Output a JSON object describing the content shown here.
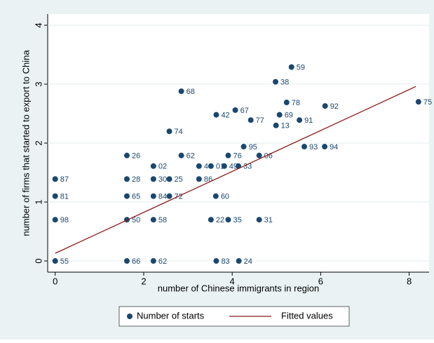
{
  "chart_data": {
    "type": "scatter",
    "xlabel": "number of Chinese immigrants in region",
    "ylabel": "number of firms that started to export to China",
    "xlim": [
      -0.17,
      8.45
    ],
    "ylim": [
      -0.19,
      4.19
    ],
    "xticks": [
      0,
      2,
      4,
      6,
      8
    ],
    "yticks": [
      0,
      1,
      2,
      3,
      4
    ],
    "grid": true,
    "legend": "bottom",
    "series": [
      {
        "name": "Number of starts",
        "type": "scatter",
        "color": "#1a476f",
        "x": [
          5.34,
          4.98,
          2.85,
          5.23,
          4.07,
          6.1,
          8.21,
          3.64,
          5.07,
          4.42,
          5.52,
          4.99,
          2.58,
          4.26,
          5.63,
          6.09,
          1.62,
          2.85,
          3.91,
          4.61,
          2.22,
          3.25,
          3.52,
          3.82,
          4.14,
          0,
          1.62,
          2.22,
          2.58,
          3.25,
          0,
          1.62,
          2.22,
          2.58,
          3.63,
          0,
          1.62,
          2.22,
          3.52,
          3.91,
          4.61,
          0,
          1.62,
          2.22,
          3.64,
          4.15
        ],
        "values": [
          3.29,
          3.04,
          2.88,
          2.69,
          2.56,
          2.63,
          2.7,
          2.48,
          2.48,
          2.39,
          2.39,
          2.3,
          2.2,
          1.94,
          1.94,
          1.94,
          1.79,
          1.79,
          1.79,
          1.79,
          1.61,
          1.61,
          1.61,
          1.61,
          1.61,
          1.39,
          1.39,
          1.39,
          1.39,
          1.39,
          1.1,
          1.1,
          1.1,
          1.1,
          1.1,
          0.7,
          0.7,
          0.7,
          0.7,
          0.7,
          0.7,
          0,
          0,
          0,
          0,
          0
        ],
        "point_labels": [
          "59",
          "38",
          "68",
          "78",
          "67",
          "92",
          "75",
          "42",
          "69",
          "77",
          "91",
          "13",
          "74",
          "95",
          "93",
          "94",
          "26",
          "62",
          "76",
          "06",
          "02",
          "40",
          "01",
          "49",
          "33",
          "87",
          "28",
          "30",
          "25",
          "86",
          "81",
          "65",
          "84",
          "72",
          "60",
          "98",
          "50",
          "58",
          "22",
          "35",
          "31",
          "55",
          "66",
          "62",
          "83",
          "24"
        ]
      },
      {
        "name": "Fitted values",
        "type": "line",
        "color": "#8b1a1a",
        "x": [
          0,
          8.15
        ],
        "values": [
          0.13,
          2.96
        ]
      }
    ]
  }
}
